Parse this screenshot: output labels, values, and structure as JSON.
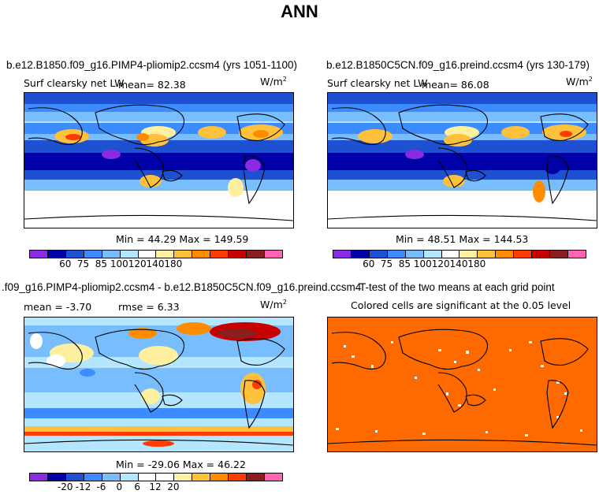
{
  "title": "ANN",
  "panels": [
    {
      "case": "b.e12.B1850.f09_g16.PIMP4-pliomip2.ccsm4 (yrs 1051-1100)",
      "variable": "Surf clearsky net LW",
      "mean_label": "mean=  82.38",
      "units_base": "W/m",
      "units_exp": "2",
      "minmax": "Min =  44.29 Max = 149.59",
      "cbar_ticks": [
        "60",
        "75",
        "85",
        "100",
        "120",
        "140",
        "180"
      ]
    },
    {
      "case": "b.e12.B1850C5CN.f09_g16.preind.ccsm4 (yrs 130-179)",
      "variable": "Surf clearsky net LW",
      "mean_label": "mean=  86.08",
      "units_base": "W/m",
      "units_exp": "2",
      "minmax": "Min =  48.51 Max = 144.53",
      "cbar_ticks": [
        "60",
        "75",
        "85",
        "100",
        "120",
        "140",
        "180"
      ]
    },
    {
      "case": ".f09_g16.PIMP4-pliomip2.ccsm4 - b.e12.B1850C5CN.f09_g16.preind.ccsm4",
      "mean_label": "mean =  -3.70",
      "rmse_label": "rmse =    6.33",
      "units_base": "W/m",
      "units_exp": "2",
      "minmax": "Min = -29.06 Max =  46.22",
      "cbar_ticks": [
        "-20",
        "-12",
        "-6",
        "0",
        "6",
        "12",
        "20"
      ]
    },
    {
      "case": "T-test of the two means at each grid point",
      "subtitle": "Colored cells are significant at the 0.05 level"
    }
  ],
  "colors": {
    "abs_scale": [
      "#8a2be2",
      "#0000a8",
      "#1e50d2",
      "#3c8cff",
      "#78beff",
      "#b4e6ff",
      "#ffffff",
      "#fff0a0",
      "#ffc03c",
      "#ff8c00",
      "#ff3c00",
      "#c80000",
      "#8b1e1e",
      "#ff64b4"
    ],
    "diff_scale": [
      "#8a2be2",
      "#0000a8",
      "#1e50d2",
      "#3c8cff",
      "#78beff",
      "#b4e6ff",
      "#ffffff",
      "#ffffff",
      "#fff0a0",
      "#ffc03c",
      "#ff8c00",
      "#ff3c00",
      "#8b1e1e",
      "#ff64b4"
    ],
    "ttest_fill": "#ff6a00"
  }
}
